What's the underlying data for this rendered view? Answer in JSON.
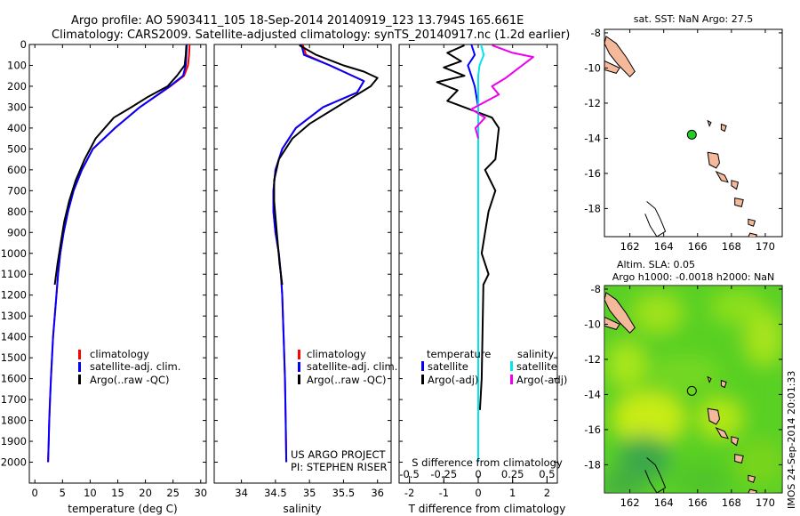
{
  "header": {
    "line1": "Argo profile: AO 5903411_105 18-Sep-2014 20140919_123 13.794S 165.661E",
    "line2": "Climatology: CARS2009. Satellite-adjusted climatology: synTS_20140917.nc (1.2d earlier)"
  },
  "credit": {
    "line1": "US ARGO PROJECT",
    "line2": "PI: STEPHEN RISER",
    "stamp": "IMOS 24-Sep-2014 20:01:33"
  },
  "colors": {
    "climatology": "#ff0000",
    "satellite": "#0000ff",
    "argo": "#000000",
    "satellite_salinity": "#00e5ee",
    "argo_salinity": "#ee00ee",
    "land": "#f4b89a",
    "float_marker": "#22cc22"
  },
  "chart_data": [
    {
      "type": "line",
      "xlabel": "temperature (deg C)",
      "ylabel": "",
      "xlim": [
        -1,
        31
      ],
      "ylim": [
        2100,
        0
      ],
      "xticks": [
        0,
        5,
        10,
        15,
        20,
        25,
        30
      ],
      "yticks": [
        0,
        100,
        200,
        300,
        400,
        500,
        600,
        700,
        800,
        900,
        1000,
        1100,
        1200,
        1300,
        1400,
        1500,
        1600,
        1700,
        1800,
        1900,
        2000
      ],
      "legend_position": "lower-center",
      "series": [
        {
          "name": "climatology",
          "color": "#ff0000",
          "x": [
            28,
            27.9,
            27.7,
            27,
            24.5,
            19,
            14.5,
            10.5,
            8.5,
            7,
            6,
            5.2,
            4.6,
            4.2,
            3.9,
            3.6,
            3.3,
            3.1,
            2.9,
            2.75,
            2.6,
            2.5,
            2.4
          ],
          "y": [
            0,
            50,
            100,
            150,
            200,
            300,
            400,
            500,
            600,
            700,
            800,
            900,
            1000,
            1100,
            1200,
            1300,
            1400,
            1500,
            1600,
            1700,
            1800,
            1900,
            2000
          ]
        },
        {
          "name": "satellite-adj. clim.",
          "color": "#0000ff",
          "x": [
            27.5,
            27.4,
            27.3,
            26.8,
            24.4,
            19,
            14.5,
            10.5,
            8.5,
            7,
            6,
            5.2,
            4.6,
            4.2,
            3.9,
            3.6,
            3.3,
            3.1,
            2.9,
            2.75,
            2.6,
            2.5,
            2.4
          ],
          "y": [
            0,
            50,
            100,
            150,
            200,
            300,
            400,
            500,
            600,
            700,
            800,
            900,
            1000,
            1100,
            1200,
            1300,
            1400,
            1500,
            1600,
            1700,
            1800,
            1900,
            2000
          ]
        },
        {
          "name": "Argo(..raw -QC)",
          "color": "#000000",
          "x": [
            27.4,
            27.3,
            27.1,
            25.7,
            24,
            20.5,
            17.5,
            14.3,
            11,
            9,
            7.4,
            6.2,
            5.3,
            4.7,
            4.1,
            3.6
          ],
          "y": [
            4,
            50,
            100,
            150,
            200,
            250,
            300,
            350,
            450,
            550,
            650,
            750,
            850,
            950,
            1050,
            1150
          ]
        }
      ]
    },
    {
      "type": "line",
      "xlabel": "salinity",
      "ylabel": "",
      "xlim": [
        33.6,
        36.2
      ],
      "ylim": [
        2100,
        0
      ],
      "xticks": [
        34,
        34.5,
        35,
        35.5,
        36
      ],
      "legend_position": "lower-center",
      "series": [
        {
          "name": "climatology",
          "color": "#ff0000",
          "x": [
            34.9,
            34.95,
            35.3,
            35.8,
            35.7,
            35.2,
            34.8,
            34.6,
            34.5,
            34.47,
            34.47,
            34.5,
            34.55,
            34.58,
            34.6,
            34.62,
            34.64,
            34.65,
            34.66
          ],
          "y": [
            0,
            50,
            100,
            175,
            230,
            300,
            400,
            500,
            600,
            700,
            800,
            900,
            1000,
            1100,
            1200,
            1400,
            1600,
            1800,
            2000
          ]
        },
        {
          "name": "satellite-adj. clim.",
          "color": "#0000ff",
          "x": [
            34.88,
            34.92,
            35.3,
            35.8,
            35.7,
            35.2,
            34.8,
            34.6,
            34.5,
            34.47,
            34.47,
            34.5,
            34.55,
            34.58,
            34.6,
            34.62,
            34.64,
            34.65,
            34.66
          ],
          "y": [
            0,
            50,
            100,
            175,
            230,
            300,
            400,
            500,
            600,
            700,
            800,
            900,
            1000,
            1100,
            1200,
            1400,
            1600,
            1800,
            2000
          ]
        },
        {
          "name": "Argo(..raw -QC)",
          "color": "#000000",
          "x": [
            34.85,
            35.1,
            35.5,
            35.8,
            36.0,
            35.9,
            35.5,
            35.0,
            34.75,
            34.55,
            34.48,
            34.48,
            34.52,
            34.56,
            34.6
          ],
          "y": [
            4,
            50,
            100,
            130,
            160,
            200,
            280,
            380,
            450,
            550,
            650,
            750,
            900,
            1050,
            1150
          ]
        }
      ]
    },
    {
      "type": "line",
      "xlabel": "T difference from climatology",
      "x2label": "S difference from climatology",
      "ylabel": "",
      "xlim": [
        -2.3,
        2.3
      ],
      "x2lim": [
        -0.575,
        0.575
      ],
      "ylim": [
        2100,
        0
      ],
      "xticks": [
        -2,
        -1,
        0,
        1,
        2
      ],
      "x2ticks": [
        -0.5,
        -0.25,
        0,
        0.25,
        0.5
      ],
      "x2ticklabels": [
        "-0.5",
        "-0.25",
        "0",
        "0.25",
        "0.5"
      ],
      "legend_position": "lower-center",
      "legend_headers": [
        "temperature",
        "salinity"
      ],
      "series": [
        {
          "name": "satellite",
          "group": "temperature",
          "color": "#0000ff",
          "axis": "T",
          "x": [
            -0.2,
            -0.1,
            -0.3,
            -0.2,
            -0.1,
            0,
            0,
            0,
            0,
            0,
            0,
            0,
            0,
            0
          ],
          "y": [
            0,
            50,
            100,
            150,
            200,
            300,
            400,
            600,
            800,
            1000,
            1200,
            1500,
            1800,
            2000
          ]
        },
        {
          "name": "Argo(-adj)",
          "group": "temperature",
          "color": "#000000",
          "axis": "T",
          "x": [
            -0.4,
            -0.9,
            -0.5,
            -1.0,
            -0.4,
            -1.2,
            -0.6,
            -0.9,
            0.4,
            0.6,
            0.5,
            0.2,
            0.5,
            0.3,
            0.2,
            0.1,
            0.3,
            0.15,
            0.1,
            0.05
          ],
          "y": [
            4,
            40,
            80,
            110,
            150,
            180,
            220,
            270,
            350,
            400,
            550,
            600,
            700,
            800,
            900,
            1000,
            1100,
            1150,
            1600,
            1750
          ]
        },
        {
          "name": "satellite",
          "group": "salinity",
          "color": "#00e5ee",
          "axis": "S",
          "x": [
            0.02,
            0.04,
            0.01,
            0,
            0,
            0,
            0,
            0,
            0,
            0,
            0,
            0
          ],
          "y": [
            0,
            50,
            100,
            150,
            250,
            400,
            600,
            800,
            1100,
            1400,
            1700,
            2000
          ]
        },
        {
          "name": "Argo(-adj)",
          "group": "salinity",
          "color": "#ee00ee",
          "axis": "S",
          "x": [
            0.1,
            0.25,
            0.4,
            0.3,
            0.2,
            0.1,
            0.15,
            -0.05,
            0.05,
            -0.02,
            0
          ],
          "y": [
            4,
            40,
            60,
            110,
            160,
            200,
            240,
            310,
            350,
            400,
            450
          ]
        }
      ]
    },
    {
      "type": "scatter",
      "title": "sat. SST: NaN Argo: 27.5",
      "xlim": [
        160.5,
        171
      ],
      "ylim": [
        -19.6,
        -7.8
      ],
      "xticks": [
        162,
        164,
        166,
        168,
        170
      ],
      "yticks": [
        -8,
        -10,
        -12,
        -14,
        -16,
        -18
      ],
      "float_position": {
        "lon": 165.661,
        "lat": -13.794
      }
    },
    {
      "type": "heatmap",
      "title_line1": "Altim. SLA: 0.05",
      "title_line2": "Argo h1000: -0.0018 h2000: NaN",
      "xlim": [
        160.5,
        171
      ],
      "ylim": [
        -19.6,
        -7.8
      ],
      "xticks": [
        162,
        164,
        166,
        168,
        170
      ],
      "yticks": [
        -8,
        -10,
        -12,
        -14,
        -16,
        -18
      ],
      "float_position": {
        "lon": 165.661,
        "lat": -13.794
      }
    }
  ]
}
